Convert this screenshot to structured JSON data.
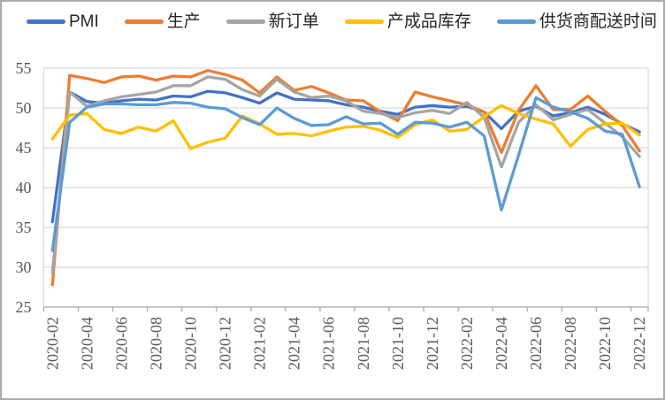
{
  "chart_data": {
    "type": "line",
    "title": "",
    "xlabel": "",
    "ylabel": "",
    "x": [
      "2020-02",
      "2020-03",
      "2020-04",
      "2020-05",
      "2020-06",
      "2020-07",
      "2020-08",
      "2020-09",
      "2020-10",
      "2020-11",
      "2020-12",
      "2021-01",
      "2021-02",
      "2021-03",
      "2021-04",
      "2021-05",
      "2021-06",
      "2021-07",
      "2021-08",
      "2021-09",
      "2021-10",
      "2021-11",
      "2021-12",
      "2022-01",
      "2022-02",
      "2022-03",
      "2022-04",
      "2022-05",
      "2022-06",
      "2022-07",
      "2022-08",
      "2022-09",
      "2022-10",
      "2022-11",
      "2022-12"
    ],
    "x_tick_every": 2,
    "ylim": [
      25,
      55
    ],
    "ytick_step": 5,
    "grid": true,
    "legend_position": "top",
    "grid_color": "#d9d9d9",
    "axis_color": "#a6a6a6",
    "tick_label_color": "#595959",
    "series": [
      {
        "name": "PMI",
        "color": "#4472c4",
        "values": [
          35.7,
          52.0,
          50.8,
          50.6,
          50.9,
          51.1,
          51.0,
          51.5,
          51.4,
          52.1,
          51.9,
          51.3,
          50.6,
          51.9,
          51.1,
          51.0,
          50.9,
          50.4,
          50.1,
          49.6,
          49.2,
          50.1,
          50.3,
          50.1,
          50.2,
          49.5,
          47.4,
          49.6,
          50.2,
          49.0,
          49.4,
          50.1,
          49.2,
          48.0,
          47.0
        ]
      },
      {
        "name": "生产",
        "color": "#ed7d31",
        "values": [
          27.8,
          54.1,
          53.7,
          53.2,
          53.9,
          54.0,
          53.5,
          54.0,
          53.9,
          54.7,
          54.2,
          53.5,
          51.9,
          53.9,
          52.2,
          52.7,
          51.9,
          51.0,
          50.9,
          49.5,
          48.4,
          52.0,
          51.4,
          50.9,
          50.4,
          49.5,
          44.4,
          49.7,
          52.8,
          49.8,
          49.8,
          51.5,
          49.6,
          47.8,
          44.6
        ]
      },
      {
        "name": "新订单",
        "color": "#a5a5a5",
        "values": [
          29.3,
          52.0,
          50.2,
          50.9,
          51.4,
          51.7,
          52.0,
          52.8,
          52.8,
          53.9,
          53.6,
          52.3,
          51.5,
          53.6,
          52.0,
          51.3,
          51.5,
          50.9,
          49.6,
          49.3,
          48.8,
          49.4,
          49.7,
          49.3,
          50.7,
          48.8,
          42.6,
          48.2,
          50.4,
          48.5,
          49.2,
          49.8,
          48.1,
          46.4,
          43.9
        ]
      },
      {
        "name": "产成品库存",
        "color": "#ffc000",
        "values": [
          46.1,
          49.1,
          49.3,
          47.3,
          46.8,
          47.6,
          47.1,
          48.4,
          44.9,
          45.7,
          46.2,
          49.0,
          48.0,
          46.7,
          46.8,
          46.5,
          47.1,
          47.6,
          47.7,
          47.2,
          46.3,
          47.9,
          48.5,
          47.1,
          47.3,
          48.9,
          50.3,
          49.3,
          48.6,
          48.0,
          45.2,
          47.3,
          48.0,
          48.1,
          46.6
        ]
      },
      {
        "name": "供货商配送时间",
        "color": "#5b9bd5",
        "values": [
          32.1,
          48.2,
          50.1,
          50.5,
          50.5,
          50.4,
          50.4,
          50.7,
          50.6,
          50.1,
          49.9,
          48.8,
          47.9,
          50.0,
          48.7,
          47.8,
          47.9,
          48.9,
          48.0,
          48.1,
          46.7,
          48.2,
          48.1,
          47.6,
          48.2,
          46.5,
          37.2,
          44.1,
          51.3,
          50.1,
          49.5,
          48.7,
          47.1,
          46.7,
          40.1
        ]
      }
    ]
  }
}
